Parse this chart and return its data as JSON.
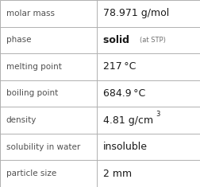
{
  "rows": [
    {
      "label": "molar mass",
      "value": "78.971 g/mol",
      "type": "plain"
    },
    {
      "label": "phase",
      "value": "solid",
      "type": "phase",
      "suffix": "(at STP)"
    },
    {
      "label": "melting point",
      "value": "217 °C",
      "type": "plain"
    },
    {
      "label": "boiling point",
      "value": "684.9 °C",
      "type": "plain"
    },
    {
      "label": "density",
      "value": "4.81 g/cm",
      "type": "super",
      "superscript": "3"
    },
    {
      "label": "solubility in water",
      "value": "insoluble",
      "type": "plain"
    },
    {
      "label": "particle size",
      "value": "2 mm",
      "type": "plain"
    }
  ],
  "border_color": "#b0b0b0",
  "bg_color": "#ffffff",
  "label_color": "#505050",
  "value_color": "#1a1a1a",
  "suffix_color": "#707070",
  "label_fontsize": 7.5,
  "value_fontsize": 9.0,
  "suffix_fontsize": 6.0,
  "super_fontsize": 6.0,
  "col_split": 0.485,
  "fig_width": 2.52,
  "fig_height": 2.35,
  "dpi": 100
}
